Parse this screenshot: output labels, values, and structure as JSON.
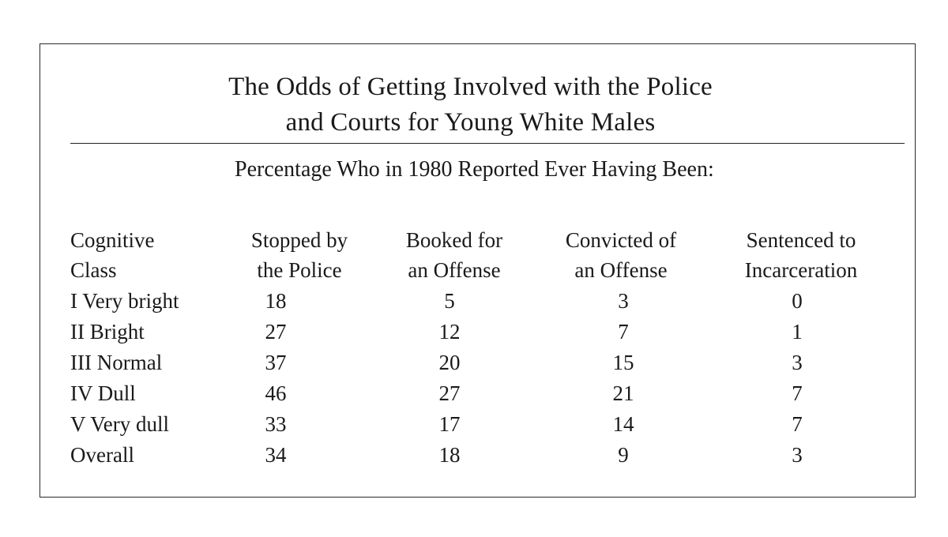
{
  "table": {
    "title_line1": "The Odds of Getting Involved with the Police",
    "title_line2": "and Courts for Young White Males",
    "subhead": "Percentage Who in 1980 Reported Ever Having Been:",
    "headers": [
      {
        "line1": "Cognitive",
        "line2": "Class"
      },
      {
        "line1": "Stopped by",
        "line2": "the Police"
      },
      {
        "line1": "Booked for",
        "line2": "an Offense"
      },
      {
        "line1": "Convicted of",
        "line2": "an Offense"
      },
      {
        "line1": "Sentenced to",
        "line2": "Incarceration"
      }
    ],
    "rows": [
      {
        "label": "I Very bright",
        "stopped": "18",
        "booked": "5",
        "convicted": "3",
        "sentenced": "0"
      },
      {
        "label": "II Bright",
        "stopped": "27",
        "booked": "12",
        "convicted": "7",
        "sentenced": "1"
      },
      {
        "label": "III Normal",
        "stopped": "37",
        "booked": "20",
        "convicted": "15",
        "sentenced": "3"
      },
      {
        "label": "IV Dull",
        "stopped": "46",
        "booked": "27",
        "convicted": "21",
        "sentenced": "7"
      },
      {
        "label": "V Very dull",
        "stopped": "33",
        "booked": "17",
        "convicted": "14",
        "sentenced": "7"
      },
      {
        "label": "Overall",
        "stopped": "34",
        "booked": "18",
        "convicted": "9",
        "sentenced": "3"
      }
    ]
  }
}
